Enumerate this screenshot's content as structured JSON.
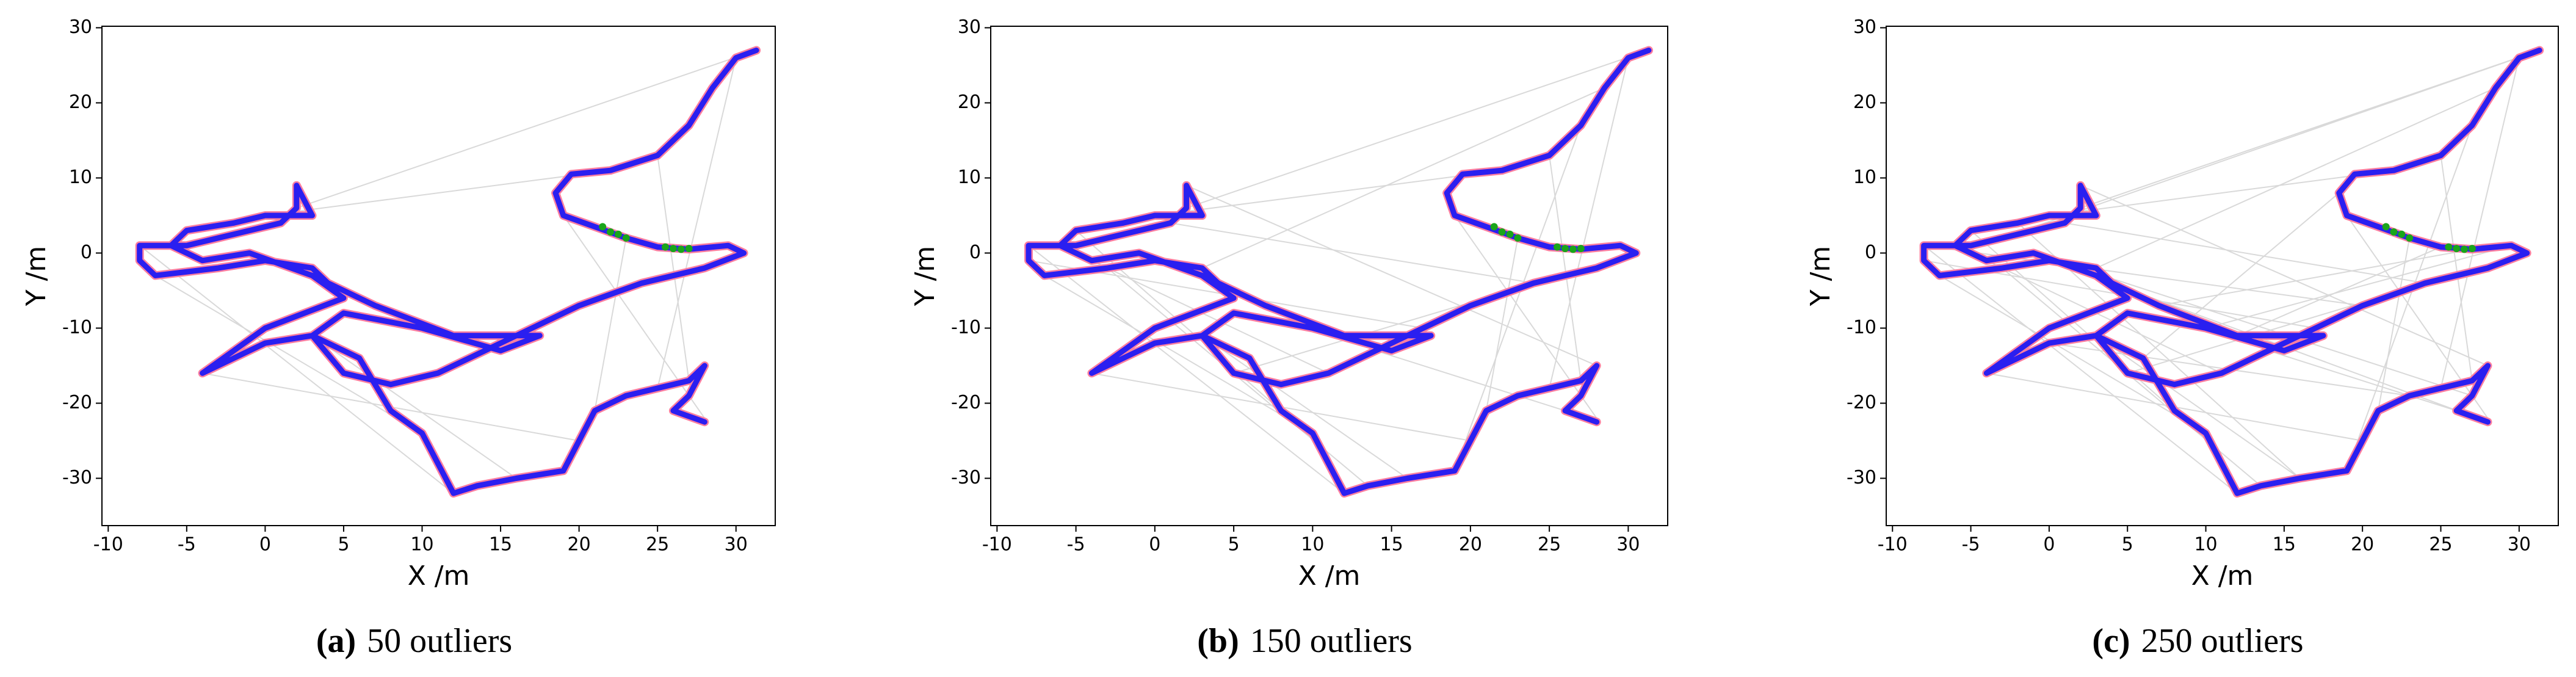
{
  "chart_data": [
    {
      "type": "line",
      "xlabel": "X /m",
      "ylabel": "Y /m",
      "caption_tag": "(a)",
      "caption": "50 outliers",
      "xlim": [
        -10.4,
        32.5
      ],
      "ylim": [
        -36.3,
        30.2
      ],
      "xticks": [
        -10,
        -5,
        0,
        5,
        10,
        15,
        20,
        25,
        30
      ],
      "yticks": [
        -30,
        -20,
        -10,
        0,
        10,
        20,
        30
      ],
      "series": [
        {
          "color": "#d9d9d9",
          "x": [
            31.3,
            2,
            null,
            30,
            25,
            null,
            25,
            27,
            null,
            -8,
            12,
            null,
            -4,
            20,
            null,
            19,
            28,
            null,
            3,
            16,
            null,
            -7,
            10,
            null,
            0,
            22,
            null,
            23,
            21
          ],
          "y": [
            27,
            6,
            null,
            26,
            -18,
            null,
            13,
            -17,
            null,
            1,
            -32,
            null,
            -16,
            -25,
            null,
            5,
            -22,
            null,
            -11,
            -30,
            null,
            -3,
            -24,
            null,
            5,
            11,
            null,
            2,
            -21
          ]
        },
        {
          "color": "#2a1ff0",
          "x": [
            31.3,
            30,
            28.5,
            27,
            25,
            22,
            19.5,
            18.5,
            19,
            21,
            23,
            25,
            27,
            29.5,
            30.5,
            28,
            24,
            20,
            17,
            14,
            11,
            8,
            5,
            3,
            5,
            10,
            15,
            17.5,
            12,
            7,
            4,
            3,
            0,
            -3,
            -7,
            -8,
            -8,
            -5,
            -3,
            -1,
            1,
            2,
            2,
            3,
            0,
            -2,
            -5,
            -6,
            -4,
            -1,
            3,
            5,
            0,
            -4,
            0,
            3,
            6,
            8,
            10,
            11,
            12,
            13.5,
            16,
            19,
            20,
            21,
            23,
            25,
            27,
            28,
            27,
            26,
            28
          ],
          "y": [
            27,
            26,
            22,
            17,
            13,
            11,
            10.5,
            8,
            5,
            3.5,
            2,
            0.8,
            0.5,
            1,
            0,
            -2,
            -4,
            -7,
            -10,
            -13,
            -16,
            -17.5,
            -16,
            -11,
            -8,
            -10,
            -13,
            -11,
            -11,
            -7,
            -4,
            -2,
            -1,
            -2,
            -3,
            -1,
            1,
            1,
            2,
            3,
            4,
            6,
            9,
            5,
            5,
            4,
            3,
            1,
            -1,
            0,
            -3,
            -6,
            -10,
            -16,
            -12,
            -11,
            -14,
            -21,
            -24,
            -28,
            -32,
            -31,
            -30,
            -29,
            -25,
            -21,
            -19,
            -18,
            -17,
            -15,
            -19,
            -21,
            -22.5
          ]
        },
        {
          "color": "#1aa51a",
          "x": [
            21.5,
            22,
            22.5,
            23,
            25.5,
            26,
            26.5,
            27
          ],
          "y": [
            3.5,
            2.8,
            2.5,
            2,
            0.8,
            0.6,
            0.5,
            0.6
          ]
        }
      ]
    },
    {
      "type": "line",
      "xlabel": "X /m",
      "ylabel": "Y /m",
      "caption_tag": "(b)",
      "caption": "150 outliers",
      "xlim": [
        -10.4,
        32.5
      ],
      "ylim": [
        -36.3,
        30.2
      ],
      "xticks": [
        -10,
        -5,
        0,
        5,
        10,
        15,
        20,
        25,
        30
      ],
      "yticks": [
        -30,
        -20,
        -10,
        0,
        10,
        20,
        30
      ],
      "series": [
        {
          "color": "#d9d9d9",
          "x": [
            31.3,
            2,
            null,
            30,
            25,
            null,
            25,
            27,
            null,
            -8,
            12,
            null,
            -4,
            20,
            null,
            19,
            28,
            null,
            3,
            16,
            null,
            -7,
            10,
            null,
            0,
            22,
            null,
            23,
            21,
            null,
            -8,
            17,
            null,
            2,
            28,
            null,
            -5,
            8,
            null,
            27,
            19,
            null,
            5,
            30.5,
            null,
            -3,
            13.5,
            null,
            1,
            24,
            null,
            11,
            -6,
            null,
            28.5,
            3,
            null,
            14,
            26
          ],
          "y": [
            27,
            6,
            null,
            26,
            -18,
            null,
            13,
            -17,
            null,
            1,
            -32,
            null,
            -16,
            -25,
            null,
            5,
            -22,
            null,
            -11,
            -30,
            null,
            -3,
            -24,
            null,
            5,
            11,
            null,
            2,
            -21,
            null,
            -1,
            -10,
            null,
            9,
            -15,
            null,
            3,
            -21,
            null,
            17,
            -29,
            null,
            -16,
            0,
            null,
            -2,
            -31,
            null,
            4,
            -4,
            null,
            -16,
            1,
            null,
            22,
            -2,
            null,
            -13,
            -21
          ]
        },
        {
          "color": "#2a1ff0",
          "x": [
            31.3,
            30,
            28.5,
            27,
            25,
            22,
            19.5,
            18.5,
            19,
            21,
            23,
            25,
            27,
            29.5,
            30.5,
            28,
            24,
            20,
            17,
            14,
            11,
            8,
            5,
            3,
            5,
            10,
            15,
            17.5,
            12,
            7,
            4,
            3,
            0,
            -3,
            -7,
            -8,
            -8,
            -5,
            -3,
            -1,
            1,
            2,
            2,
            3,
            0,
            -2,
            -5,
            -6,
            -4,
            -1,
            3,
            5,
            0,
            -4,
            0,
            3,
            6,
            8,
            10,
            11,
            12,
            13.5,
            16,
            19,
            20,
            21,
            23,
            25,
            27,
            28,
            27,
            26,
            28
          ],
          "y": [
            27,
            26,
            22,
            17,
            13,
            11,
            10.5,
            8,
            5,
            3.5,
            2,
            0.8,
            0.5,
            1,
            0,
            -2,
            -4,
            -7,
            -10,
            -13,
            -16,
            -17.5,
            -16,
            -11,
            -8,
            -10,
            -13,
            -11,
            -11,
            -7,
            -4,
            -2,
            -1,
            -2,
            -3,
            -1,
            1,
            1,
            2,
            3,
            4,
            6,
            9,
            5,
            5,
            4,
            3,
            1,
            -1,
            0,
            -3,
            -6,
            -10,
            -16,
            -12,
            -11,
            -14,
            -21,
            -24,
            -28,
            -32,
            -31,
            -30,
            -29,
            -25,
            -21,
            -19,
            -18,
            -17,
            -15,
            -19,
            -21,
            -22.5
          ]
        },
        {
          "color": "#1aa51a",
          "x": [
            21.5,
            22,
            22.5,
            23,
            25.5,
            26,
            26.5,
            27
          ],
          "y": [
            3.5,
            2.8,
            2.5,
            2,
            0.8,
            0.6,
            0.5,
            0.6
          ]
        }
      ]
    },
    {
      "type": "line",
      "xlabel": "X /m",
      "ylabel": "Y /m",
      "caption_tag": "(c)",
      "caption": "250 outliers",
      "xlim": [
        -10.4,
        32.5
      ],
      "ylim": [
        -36.3,
        30.2
      ],
      "xticks": [
        -10,
        -5,
        0,
        5,
        10,
        15,
        20,
        25,
        30
      ],
      "yticks": [
        -30,
        -20,
        -10,
        0,
        10,
        20,
        30
      ],
      "series": [
        {
          "color": "#d9d9d9",
          "x": [
            31.3,
            2,
            null,
            30,
            25,
            null,
            25,
            27,
            null,
            -8,
            12,
            null,
            -4,
            20,
            null,
            19,
            28,
            null,
            3,
            16,
            null,
            -7,
            10,
            null,
            0,
            22,
            null,
            23,
            21,
            null,
            -8,
            17,
            null,
            2,
            28,
            null,
            -5,
            8,
            null,
            27,
            19,
            null,
            5,
            30.5,
            null,
            -3,
            13.5,
            null,
            1,
            24,
            null,
            11,
            -6,
            null,
            28.5,
            3,
            null,
            14,
            26,
            null,
            -1,
            27,
            null,
            31.3,
            -3,
            null,
            12,
            25,
            null,
            0,
            23,
            null,
            20,
            -8,
            null,
            4,
            28,
            null,
            29.5,
            10,
            null,
            -2,
            16,
            null,
            18.5,
            6,
            null,
            7,
            27
          ],
          "y": [
            27,
            6,
            null,
            26,
            -18,
            null,
            13,
            -17,
            null,
            1,
            -32,
            null,
            -16,
            -25,
            null,
            5,
            -22,
            null,
            -11,
            -30,
            null,
            -3,
            -24,
            null,
            5,
            11,
            null,
            2,
            -21,
            null,
            -1,
            -10,
            null,
            9,
            -15,
            null,
            3,
            -21,
            null,
            17,
            -29,
            null,
            -16,
            0,
            null,
            -2,
            -31,
            null,
            4,
            -4,
            null,
            -16,
            1,
            null,
            22,
            -2,
            null,
            -13,
            -21,
            null,
            0,
            -19,
            null,
            27,
            2,
            null,
            -11,
            0.8,
            null,
            -12,
            -19,
            null,
            -7,
            1,
            null,
            -4,
            -22.5,
            null,
            1,
            -10,
            null,
            4,
            -30,
            null,
            8,
            -14,
            null,
            -7,
            0.5
          ]
        },
        {
          "color": "#2a1ff0",
          "x": [
            31.3,
            30,
            28.5,
            27,
            25,
            22,
            19.5,
            18.5,
            19,
            21,
            23,
            25,
            27,
            29.5,
            30.5,
            28,
            24,
            20,
            17,
            14,
            11,
            8,
            5,
            3,
            5,
            10,
            15,
            17.5,
            12,
            7,
            4,
            3,
            0,
            -3,
            -7,
            -8,
            -8,
            -5,
            -3,
            -1,
            1,
            2,
            2,
            3,
            0,
            -2,
            -5,
            -6,
            -4,
            -1,
            3,
            5,
            0,
            -4,
            0,
            3,
            6,
            8,
            10,
            11,
            12,
            13.5,
            16,
            19,
            20,
            21,
            23,
            25,
            27,
            28,
            27,
            26,
            28
          ],
          "y": [
            27,
            26,
            22,
            17,
            13,
            11,
            10.5,
            8,
            5,
            3.5,
            2,
            0.8,
            0.5,
            1,
            0,
            -2,
            -4,
            -7,
            -10,
            -13,
            -16,
            -17.5,
            -16,
            -11,
            -8,
            -10,
            -13,
            -11,
            -11,
            -7,
            -4,
            -2,
            -1,
            -2,
            -3,
            -1,
            1,
            1,
            2,
            3,
            4,
            6,
            9,
            5,
            5,
            4,
            3,
            1,
            -1,
            0,
            -3,
            -6,
            -10,
            -16,
            -12,
            -11,
            -14,
            -21,
            -24,
            -28,
            -32,
            -31,
            -30,
            -29,
            -25,
            -21,
            -19,
            -18,
            -17,
            -15,
            -19,
            -21,
            -22.5
          ]
        },
        {
          "color": "#1aa51a",
          "x": [
            21.5,
            22,
            22.5,
            23,
            25.5,
            26,
            26.5,
            27
          ],
          "y": [
            3.5,
            2.8,
            2.5,
            2,
            0.8,
            0.6,
            0.5,
            0.6
          ]
        }
      ]
    }
  ]
}
